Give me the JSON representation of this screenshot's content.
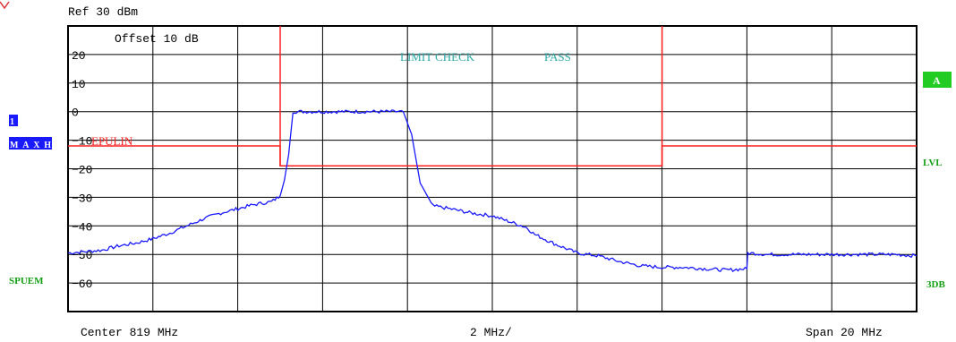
{
  "header": {
    "ref_text": "Ref  30 dBm",
    "offset_text": "Offset  10 dB"
  },
  "status": {
    "limit_check_text": "LIMIT CHECK",
    "limit_result_text": "PASS",
    "limit_line_label": "EPULIN"
  },
  "footer": {
    "center_text": "Center 819 MHz",
    "div_text": "2 MHz/",
    "span_text": "Span 20 MHz"
  },
  "side_labels": {
    "trace_number": "1",
    "trace_mode": "MAXH",
    "sweep_mode": "SPUEM",
    "trace_a": "A",
    "level": "LVL",
    "threedb": "3DB"
  },
  "colors": {
    "trace": "#1a1aff",
    "limit": "#ff2020",
    "grid": "#000000",
    "limit_text": "#2aa6a6",
    "green_label": "#14a014",
    "green_badge": "#22cc22",
    "blue_badge": "#1a1aff",
    "marker": "#e03030"
  },
  "chart_data": {
    "type": "line",
    "title": "",
    "xlabel": "",
    "ylabel": "",
    "xlim": [
      809,
      829
    ],
    "ylim": [
      -70,
      30
    ],
    "y_ticks": [
      20,
      10,
      0,
      -10,
      -20,
      -30,
      -40,
      -50,
      -60
    ],
    "y_tick_labels": [
      "20",
      "10",
      "0",
      "-10",
      "-20",
      "-30",
      "-40",
      "-50",
      "-60"
    ],
    "grid": true,
    "series": [
      {
        "name": "",
        "x": [
          809.0,
          809.4,
          809.8,
          810.2,
          810.6,
          811.0,
          811.4,
          811.8,
          812.2,
          812.6,
          813.0,
          813.4,
          813.8,
          814.0,
          814.1,
          814.2,
          814.3,
          814.5,
          815.0,
          815.5,
          816.0,
          816.5,
          816.9,
          817.1,
          817.3,
          817.6,
          818.0,
          818.5,
          819.0,
          819.5,
          819.8,
          820.0,
          820.5,
          821.0,
          821.5,
          822.0,
          822.5,
          823.0,
          823.5,
          824.0,
          824.5,
          825.0,
          825.02,
          825.5,
          826.0,
          826.5,
          827.0,
          827.5,
          828.0,
          828.5,
          829.0
        ],
        "y": [
          -49.5,
          -49.0,
          -48.5,
          -47.0,
          -46.0,
          -44.5,
          -42.5,
          -40.0,
          -37.5,
          -35.5,
          -34.0,
          -32.5,
          -31.5,
          -29.5,
          -24.0,
          -15.0,
          0.0,
          0.0,
          0.0,
          0.0,
          0.0,
          0.0,
          0.0,
          -8.0,
          -25.0,
          -33.0,
          -34.0,
          -35.5,
          -36.5,
          -39.0,
          -40.5,
          -43.0,
          -46.5,
          -49.5,
          -50.5,
          -52.5,
          -54.0,
          -54.5,
          -54.5,
          -55.0,
          -55.5,
          -55.0,
          -49.5,
          -50.0,
          -50.0,
          -50.0,
          -50.0,
          -50.0,
          -50.0,
          -50.0,
          -50.5
        ]
      }
    ],
    "limit_line": {
      "x": [
        809,
        814,
        814,
        816.9,
        816.9,
        823,
        823,
        829
      ],
      "y": [
        -12,
        -12,
        -19,
        -19,
        -19,
        -19,
        -12,
        -12
      ]
    },
    "verticals": [
      814.0,
      823.0
    ]
  }
}
